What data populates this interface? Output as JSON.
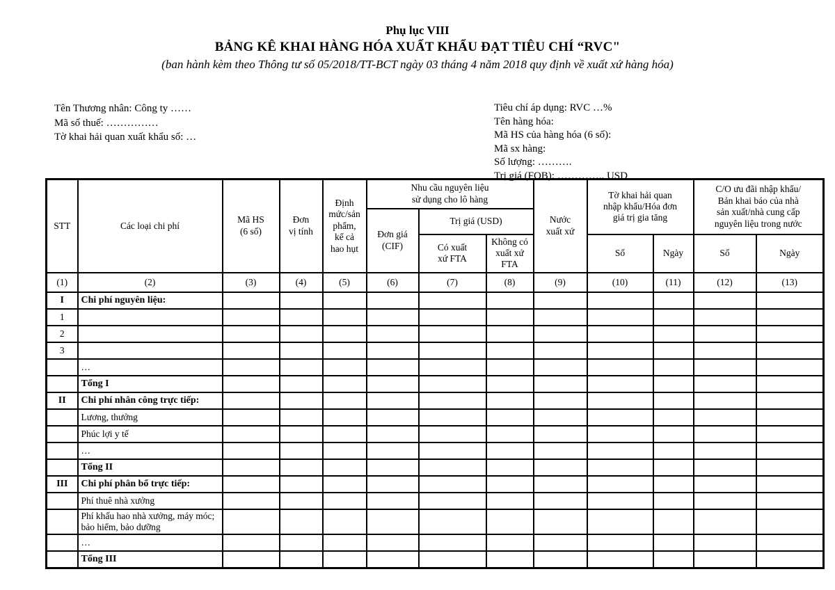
{
  "header": {
    "appendix": "Phụ lục VIII",
    "title": "BẢNG KÊ KHAI HÀNG HÓA XUẤT KHẨU ĐẠT TIÊU CHÍ “RVC\"",
    "subtitle": "(ban hành kèm theo Thông tư số 05/2018/TT-BCT ngày 03 tháng 4 năm 2018 quy định về xuất xứ hàng hóa)"
  },
  "info_left": {
    "lines": [
      "Tên Thương nhân: Công ty ……",
      "Mã số thuế: ……………",
      "Tờ khai hải quan xuất khẩu số: …"
    ]
  },
  "info_right": {
    "lines": [
      "Tiêu chí áp dụng: RVC …%",
      "Tên hàng hóa:",
      "Mã HS của hàng hóa (6 số):",
      "Mã sx hàng:",
      "Số lượng: ……….",
      "Trị giá (FOB): ………….. USD"
    ]
  },
  "table": {
    "headers": {
      "stt": "STT",
      "cost_types": "Các loại chi phí",
      "hs_code": "Mã HS\n(6 số)",
      "unit": "Đơn\nvị tính",
      "norm": "Định\nmức/sản\nphẩm,\nkể cả\nhao hụt",
      "material_need_group": "Nhu cầu nguyên liệu\nsử dụng cho lô hàng",
      "unit_price_cif": "Đơn giá\n(CIF)",
      "value_usd": "Trị giá (USD)",
      "fta_origin": "Có xuất\nxứ FTA",
      "non_fta_origin": "Không có\nxuất xứ\nFTA",
      "origin_country": "Nước\nxuất xứ",
      "import_declaration_group": "Tờ khai hải quan\nnhập khẩu/Hóa đơn\ngiá trị gia tăng",
      "import_so": "Số",
      "import_ngay": "Ngày",
      "co_group": "C/O ưu đãi nhập khẩu/\nBản khai báo của nhà\nsản xuất/nhà cung cấp\nnguyên liệu trong nước",
      "co_so": "Số",
      "co_ngay": "Ngày"
    },
    "column_numbers": [
      "(1)",
      "(2)",
      "(3)",
      "(4)",
      "(5)",
      "(6)",
      "(7)",
      "(8)",
      "(9)",
      "(10)",
      "(11)",
      "(12)",
      "(13)"
    ],
    "rows": [
      {
        "stt": "I",
        "label": "Chi phí nguyên liệu:",
        "bold": true
      },
      {
        "stt": "1",
        "label": "",
        "bold": false
      },
      {
        "stt": "2",
        "label": "",
        "bold": false
      },
      {
        "stt": "3",
        "label": "",
        "bold": false
      },
      {
        "stt": "",
        "label": "…",
        "bold": false
      },
      {
        "stt": "",
        "label": "Tổng I",
        "bold": true
      },
      {
        "stt": "II",
        "label": "Chi phí nhân công trực tiếp:",
        "bold": true
      },
      {
        "stt": "",
        "label": "Lương, thưởng",
        "bold": false
      },
      {
        "stt": "",
        "label": "Phúc lợi y tế",
        "bold": false
      },
      {
        "stt": "",
        "label": "…",
        "bold": false
      },
      {
        "stt": "",
        "label": "Tổng II",
        "bold": true
      },
      {
        "stt": "III",
        "label": "Chi phí phân bổ trực tiếp:",
        "bold": true
      },
      {
        "stt": "",
        "label": "Phí thuê nhà xưởng",
        "bold": false
      },
      {
        "stt": "",
        "label": "Phí khấu hao nhà xưởng, máy móc; bảo hiểm, bảo dưỡng",
        "bold": false
      },
      {
        "stt": "",
        "label": "…",
        "bold": false
      },
      {
        "stt": "",
        "label": "Tổng III",
        "bold": true
      }
    ]
  }
}
